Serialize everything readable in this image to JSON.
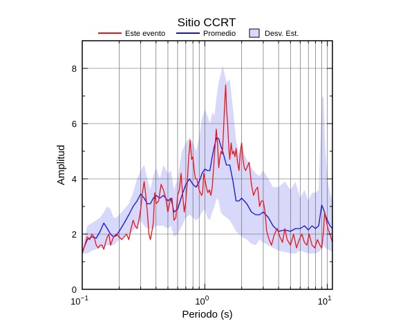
{
  "chart_data": {
    "type": "line",
    "title": "Sitio CCRT",
    "xlabel": "Periodo (s)",
    "ylabel": "Amplitud",
    "x_scale": "log",
    "xlim": [
      0.1,
      11
    ],
    "ylim": [
      0,
      9
    ],
    "x_ticks": [
      {
        "value": 0.1,
        "label": "10",
        "exp": "−1"
      },
      {
        "value": 1,
        "label": "10",
        "exp": "0"
      },
      {
        "value": 10,
        "label": "10",
        "exp": "1"
      }
    ],
    "y_ticks": [
      0,
      2,
      4,
      6,
      8
    ],
    "grid": true,
    "legend": {
      "position": "top",
      "entries": [
        {
          "label": "Este evento",
          "type": "line",
          "color": "#ee1111"
        },
        {
          "label": "Promedio",
          "type": "line",
          "color": "#1111dd"
        },
        {
          "label": "Desv. Est.",
          "type": "band",
          "color": "#d8d8fa"
        }
      ]
    },
    "band": {
      "name": "Desv. Est.",
      "color": "#d8d8fa",
      "x": [
        0.1,
        0.11,
        0.12,
        0.13,
        0.14,
        0.15,
        0.16,
        0.17,
        0.18,
        0.19,
        0.2,
        0.22,
        0.24,
        0.26,
        0.28,
        0.3,
        0.32,
        0.34,
        0.36,
        0.38,
        0.4,
        0.43,
        0.46,
        0.5,
        0.53,
        0.56,
        0.6,
        0.65,
        0.7,
        0.75,
        0.8,
        0.85,
        0.9,
        0.95,
        1.0,
        1.05,
        1.1,
        1.15,
        1.2,
        1.25,
        1.3,
        1.35,
        1.4,
        1.5,
        1.6,
        1.7,
        1.8,
        1.9,
        2.0,
        2.2,
        2.4,
        2.6,
        2.8,
        3.0,
        3.3,
        3.6,
        4.0,
        4.5,
        5.0,
        5.5,
        6.0,
        6.5,
        7.0,
        7.5,
        8.0,
        8.5,
        9.0,
        9.3,
        9.6,
        10.0,
        10.5,
        11.0
      ],
      "upper": [
        1.5,
        2.3,
        2.4,
        2.5,
        2.6,
        2.8,
        3.0,
        2.9,
        2.6,
        2.6,
        2.7,
        2.9,
        3.1,
        3.5,
        4.0,
        4.3,
        4.5,
        4.0,
        3.6,
        4.1,
        4.4,
        4.0,
        4.5,
        4.2,
        4.3,
        3.6,
        4.0,
        5.0,
        5.3,
        5.5,
        5.3,
        5.0,
        5.5,
        6.2,
        6.5,
        6.3,
        6.0,
        6.4,
        6.3,
        7.0,
        7.5,
        7.8,
        8.1,
        7.5,
        7.6,
        6.5,
        5.4,
        4.9,
        5.1,
        4.7,
        4.4,
        4.2,
        4.1,
        4.3,
        4.0,
        3.7,
        3.7,
        3.9,
        3.6,
        3.9,
        3.3,
        3.6,
        3.2,
        3.5,
        3.5,
        3.6,
        6.9,
        7.0,
        5.2,
        4.0,
        3.5,
        3.2
      ],
      "lower": [
        1.3,
        1.3,
        1.4,
        1.45,
        1.5,
        1.5,
        1.6,
        1.6,
        1.6,
        1.7,
        1.8,
        1.9,
        2.0,
        2.1,
        2.3,
        2.5,
        2.3,
        2.2,
        2.2,
        2.2,
        2.3,
        2.3,
        2.3,
        2.2,
        2.3,
        1.9,
        2.0,
        2.3,
        2.6,
        2.7,
        2.6,
        2.5,
        2.6,
        2.8,
        2.9,
        2.6,
        2.5,
        2.8,
        3.0,
        3.3,
        3.2,
        2.8,
        2.7,
        2.6,
        2.5,
        2.3,
        2.1,
        2.0,
        1.9,
        1.8,
        1.65,
        1.6,
        1.8,
        1.7,
        1.6,
        1.5,
        1.4,
        1.35,
        1.3,
        1.3,
        1.4,
        1.35,
        1.3,
        1.3,
        1.3,
        1.35,
        1.45,
        1.6,
        1.5,
        1.45,
        1.4,
        1.35
      ]
    },
    "series": [
      {
        "name": "Promedio",
        "color": "#1111dd",
        "x": [
          0.1,
          0.11,
          0.12,
          0.13,
          0.14,
          0.15,
          0.16,
          0.17,
          0.18,
          0.19,
          0.2,
          0.22,
          0.24,
          0.26,
          0.28,
          0.3,
          0.32,
          0.34,
          0.36,
          0.38,
          0.4,
          0.43,
          0.46,
          0.5,
          0.53,
          0.56,
          0.6,
          0.65,
          0.7,
          0.75,
          0.8,
          0.85,
          0.9,
          0.95,
          1.0,
          1.05,
          1.1,
          1.15,
          1.2,
          1.25,
          1.3,
          1.35,
          1.4,
          1.5,
          1.6,
          1.7,
          1.8,
          1.9,
          2.0,
          2.2,
          2.4,
          2.6,
          2.8,
          3.0,
          3.3,
          3.6,
          4.0,
          4.5,
          5.0,
          5.5,
          6.0,
          6.5,
          7.0,
          7.5,
          8.0,
          8.5,
          9.0,
          9.3,
          9.6,
          10.0,
          10.5,
          11.0
        ],
        "values": [
          1.35,
          1.8,
          1.9,
          1.85,
          2.1,
          2.4,
          2.2,
          2.0,
          1.9,
          1.95,
          2.1,
          2.4,
          2.7,
          3.0,
          3.2,
          3.45,
          3.3,
          3.1,
          3.1,
          3.3,
          3.4,
          3.3,
          3.4,
          3.2,
          3.3,
          2.8,
          2.9,
          3.4,
          3.8,
          4.0,
          3.8,
          3.7,
          3.9,
          4.2,
          4.35,
          4.3,
          4.3,
          4.8,
          5.2,
          5.5,
          5.45,
          5.2,
          5.0,
          4.5,
          4.5,
          3.9,
          3.2,
          3.2,
          3.3,
          3.1,
          2.8,
          2.7,
          2.7,
          2.8,
          2.6,
          2.3,
          2.1,
          2.15,
          2.1,
          2.2,
          2.2,
          2.3,
          2.15,
          2.3,
          2.2,
          2.3,
          3.05,
          2.9,
          2.7,
          2.5,
          2.3,
          2.2
        ]
      },
      {
        "name": "Este evento",
        "color": "#ee1111",
        "x": [
          0.1,
          0.105,
          0.11,
          0.115,
          0.12,
          0.125,
          0.13,
          0.135,
          0.14,
          0.145,
          0.15,
          0.155,
          0.16,
          0.165,
          0.17,
          0.18,
          0.19,
          0.2,
          0.21,
          0.22,
          0.23,
          0.24,
          0.25,
          0.26,
          0.27,
          0.28,
          0.29,
          0.3,
          0.31,
          0.32,
          0.33,
          0.34,
          0.35,
          0.36,
          0.37,
          0.38,
          0.39,
          0.4,
          0.42,
          0.44,
          0.46,
          0.48,
          0.5,
          0.52,
          0.54,
          0.56,
          0.58,
          0.6,
          0.62,
          0.64,
          0.66,
          0.68,
          0.7,
          0.72,
          0.74,
          0.76,
          0.78,
          0.8,
          0.82,
          0.84,
          0.86,
          0.88,
          0.9,
          0.92,
          0.94,
          0.96,
          0.98,
          1.0,
          1.03,
          1.06,
          1.09,
          1.12,
          1.15,
          1.18,
          1.21,
          1.24,
          1.27,
          1.3,
          1.33,
          1.36,
          1.39,
          1.42,
          1.45,
          1.48,
          1.51,
          1.54,
          1.57,
          1.6,
          1.64,
          1.68,
          1.72,
          1.76,
          1.8,
          1.85,
          1.9,
          1.95,
          2.0,
          2.05,
          2.1,
          2.15,
          2.2,
          2.3,
          2.4,
          2.5,
          2.6,
          2.7,
          2.8,
          2.9,
          3.0,
          3.1,
          3.2,
          3.35,
          3.5,
          3.7,
          3.9,
          4.1,
          4.3,
          4.5,
          4.7,
          5.0,
          5.3,
          5.6,
          5.9,
          6.2,
          6.5,
          6.8,
          7.1,
          7.5,
          7.9,
          8.3,
          8.7,
          9.0,
          9.3,
          9.5,
          9.8,
          10.1,
          10.5,
          11.0
        ],
        "values": [
          1.3,
          1.6,
          1.9,
          1.8,
          2.0,
          1.9,
          1.6,
          1.5,
          1.6,
          1.6,
          1.45,
          1.7,
          1.9,
          2.0,
          1.6,
          1.9,
          2.0,
          1.9,
          1.8,
          1.9,
          2.0,
          1.8,
          2.2,
          2.5,
          2.3,
          2.2,
          2.5,
          2.9,
          3.5,
          3.9,
          3.4,
          2.8,
          2.0,
          1.8,
          2.1,
          2.4,
          3.5,
          3.1,
          3.2,
          3.8,
          3.6,
          3.3,
          2.8,
          3.2,
          3.3,
          2.5,
          2.6,
          3.4,
          3.6,
          4.2,
          3.4,
          2.8,
          3.2,
          3.9,
          4.8,
          5.4,
          4.7,
          4.8,
          4.3,
          4.0,
          4.0,
          3.8,
          3.6,
          3.5,
          3.4,
          3.5,
          4.2,
          4.0,
          3.7,
          3.5,
          3.6,
          3.4,
          3.7,
          4.4,
          5.1,
          5.8,
          5.3,
          4.4,
          4.8,
          5.0,
          4.9,
          5.7,
          6.6,
          7.4,
          6.4,
          5.9,
          5.1,
          4.7,
          5.3,
          4.9,
          5.0,
          4.8,
          5.1,
          4.6,
          4.3,
          5.0,
          5.3,
          4.7,
          4.4,
          4.3,
          4.4,
          4.6,
          3.8,
          3.4,
          3.6,
          3.7,
          3.0,
          3.2,
          3.2,
          2.8,
          2.1,
          1.8,
          1.6,
          2.0,
          2.2,
          1.9,
          1.7,
          2.2,
          1.8,
          1.6,
          2.0,
          1.5,
          1.8,
          2.0,
          1.7,
          1.6,
          2.0,
          1.6,
          1.5,
          1.8,
          1.6,
          1.5,
          2.1,
          2.8,
          2.5,
          2.2,
          2.0,
          1.7
        ]
      }
    ]
  }
}
